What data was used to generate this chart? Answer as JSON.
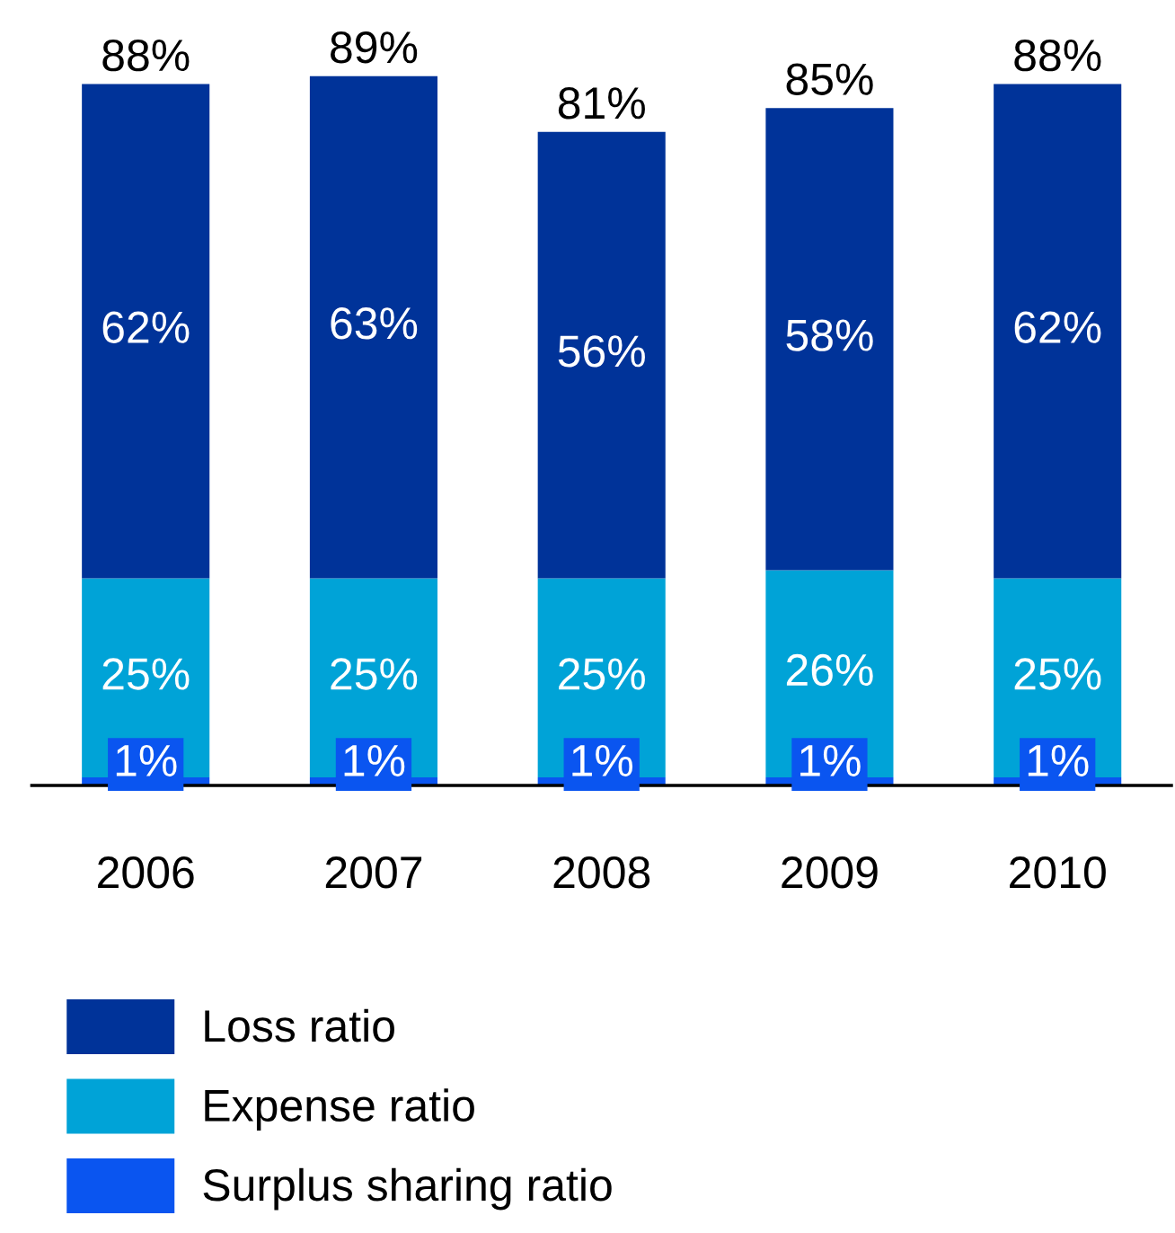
{
  "chart_data": {
    "type": "bar",
    "stacked": true,
    "categories": [
      "2006",
      "2007",
      "2008",
      "2009",
      "2010"
    ],
    "series": [
      {
        "name": "Surplus sharing ratio",
        "color": "#0a55f0",
        "values": [
          1,
          1,
          1,
          1,
          1
        ],
        "value_labels": [
          "1%",
          "1%",
          "1%",
          "1%",
          "1%"
        ]
      },
      {
        "name": "Expense ratio",
        "color": "#00a3d7",
        "values": [
          25,
          25,
          25,
          26,
          25
        ],
        "value_labels": [
          "25%",
          "25%",
          "25%",
          "26%",
          "25%"
        ]
      },
      {
        "name": "Loss ratio",
        "color": "#003399",
        "values": [
          62,
          63,
          56,
          58,
          62
        ],
        "value_labels": [
          "62%",
          "63%",
          "56%",
          "58%",
          "62%"
        ]
      }
    ],
    "totals": [
      "88%",
      "89%",
      "81%",
      "85%",
      "88%"
    ],
    "legend": "bottom",
    "grid": false
  }
}
